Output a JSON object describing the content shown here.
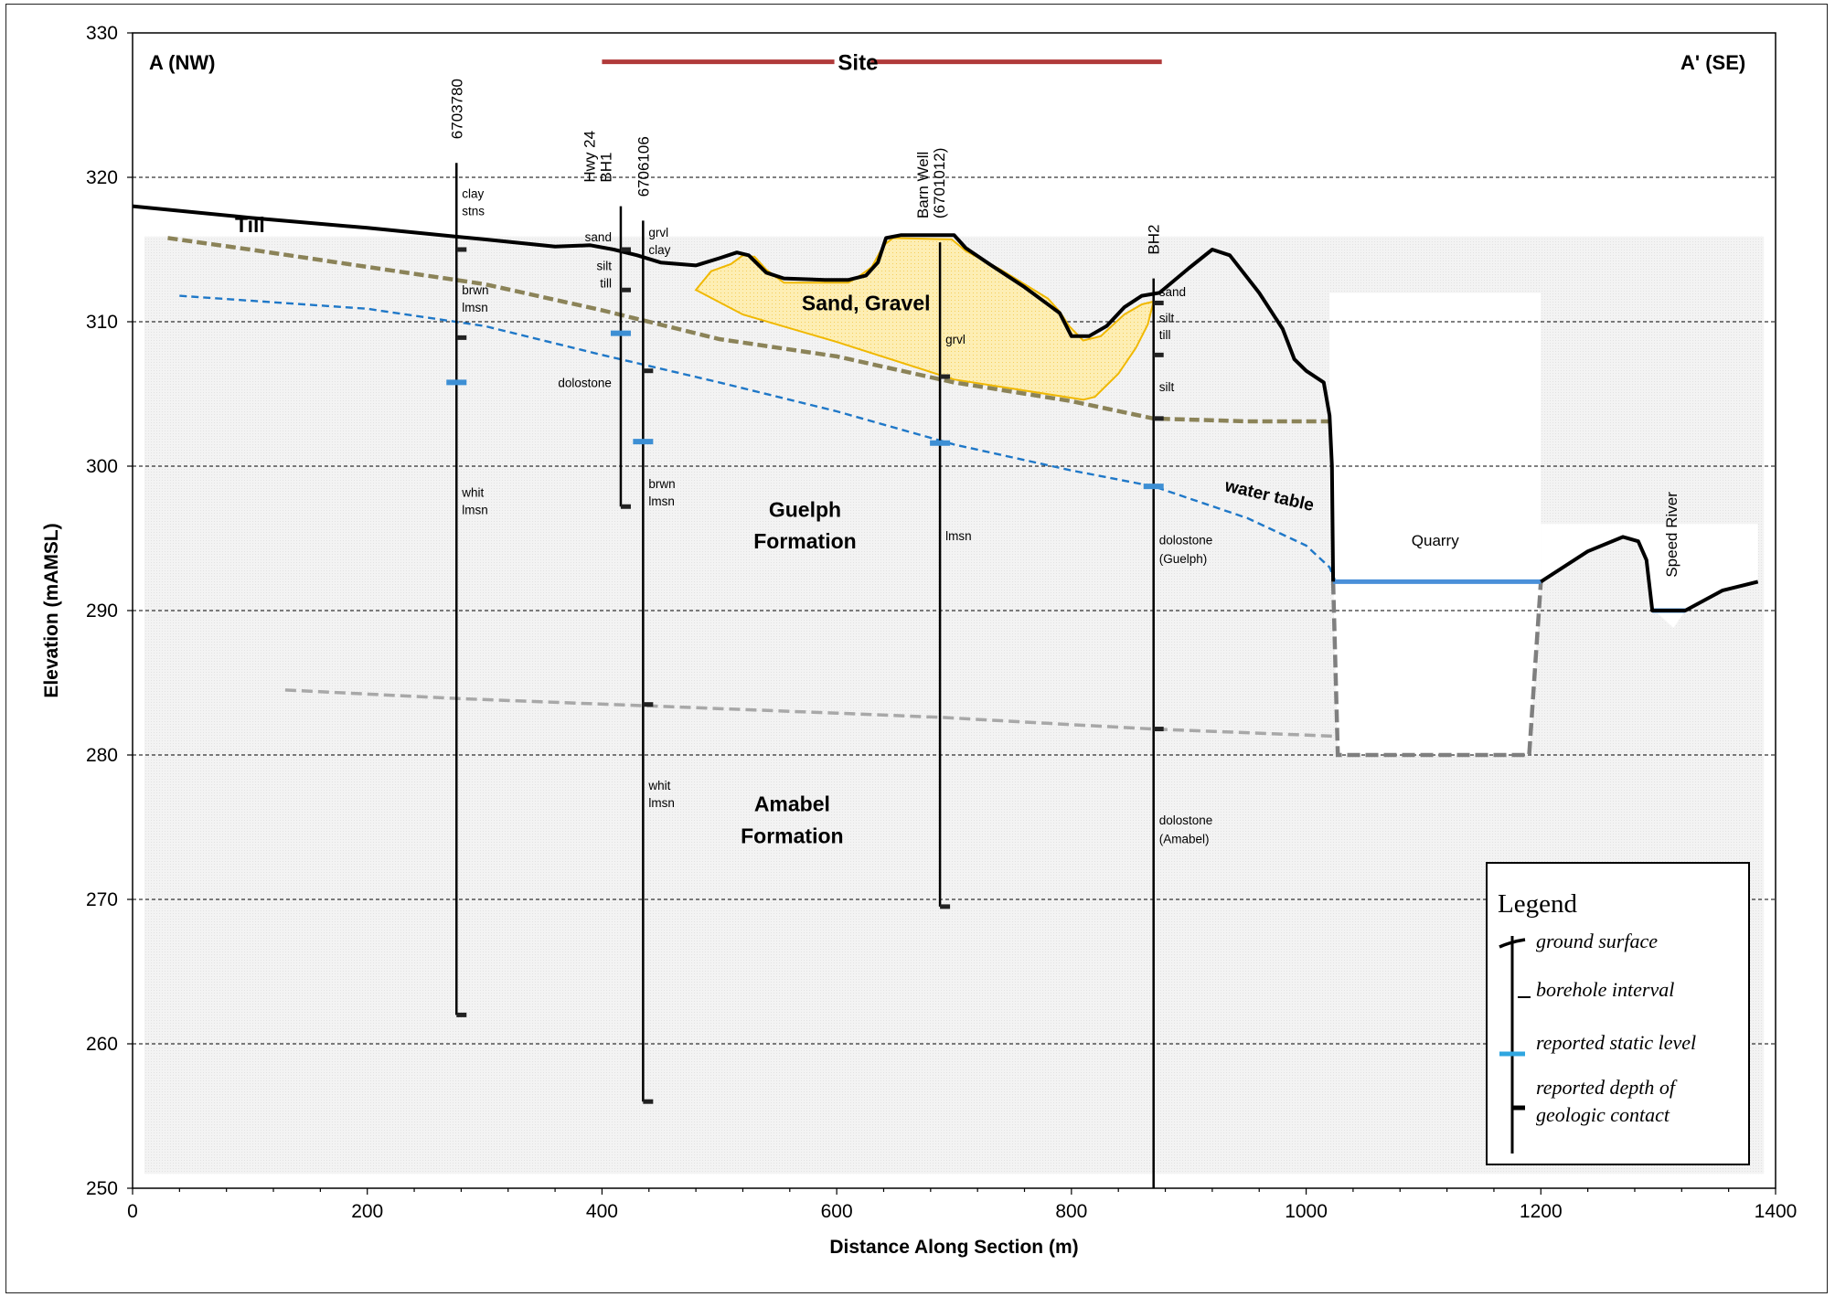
{
  "chart_data": {
    "type": "cross-section",
    "xlabel": "Distance Along Section (m)",
    "ylabel": "Elevation (mAMSL)",
    "xlim": [
      0,
      1400
    ],
    "ylim": [
      250,
      330
    ],
    "x_ticks": [
      0,
      200,
      400,
      600,
      800,
      1000,
      1200,
      1400
    ],
    "y_ticks": [
      250,
      260,
      270,
      280,
      290,
      300,
      310,
      320,
      330
    ],
    "grid": "horizontal dashed",
    "section_start": "A (NW)",
    "section_end": "A' (SE)",
    "site": {
      "label": "Site",
      "x": [
        400,
        877
      ],
      "y": 328
    },
    "ground_surface": [
      [
        0,
        318
      ],
      [
        100,
        317.2
      ],
      [
        200,
        316.5
      ],
      [
        300,
        315.7
      ],
      [
        360,
        315.2
      ],
      [
        390,
        315.3
      ],
      [
        410,
        315
      ],
      [
        430,
        314.6
      ],
      [
        450,
        314.1
      ],
      [
        480,
        313.9
      ],
      [
        500,
        314.4
      ],
      [
        515,
        314.8
      ],
      [
        525,
        314.6
      ],
      [
        540,
        313.4
      ],
      [
        555,
        313
      ],
      [
        590,
        312.9
      ],
      [
        610,
        312.9
      ],
      [
        625,
        313.2
      ],
      [
        635,
        314.1
      ],
      [
        642,
        315.8
      ],
      [
        655,
        316
      ],
      [
        700,
        316
      ],
      [
        710,
        315.1
      ],
      [
        730,
        314
      ],
      [
        760,
        312.4
      ],
      [
        790,
        310.6
      ],
      [
        800,
        309
      ],
      [
        815,
        309
      ],
      [
        830,
        309.7
      ],
      [
        845,
        311
      ],
      [
        860,
        311.8
      ],
      [
        875,
        312
      ],
      [
        900,
        313.7
      ],
      [
        920,
        315
      ],
      [
        935,
        314.6
      ],
      [
        960,
        312
      ],
      [
        980,
        309.5
      ],
      [
        990,
        307.4
      ],
      [
        1000,
        306.6
      ],
      [
        1015,
        305.8
      ],
      [
        1020,
        303.5
      ],
      [
        1022,
        300
      ],
      [
        1023,
        292
      ]
    ],
    "ground_surface_se": [
      [
        1200,
        292
      ],
      [
        1240,
        294.1
      ],
      [
        1270,
        295.1
      ],
      [
        1283,
        294.8
      ],
      [
        1290,
        293.5
      ],
      [
        1295,
        290
      ],
      [
        1323,
        290
      ],
      [
        1355,
        291.4
      ],
      [
        1385,
        292
      ]
    ],
    "till_bottom": [
      [
        30,
        315.8
      ],
      [
        100,
        315
      ],
      [
        200,
        313.8
      ],
      [
        300,
        312.6
      ],
      [
        400,
        310.8
      ],
      [
        500,
        308.8
      ],
      [
        600,
        307.6
      ],
      [
        700,
        305.8
      ],
      [
        800,
        304.5
      ],
      [
        870,
        303.3
      ],
      [
        950,
        303.1
      ],
      [
        1020,
        303.1
      ]
    ],
    "water_table": [
      [
        40,
        311.8
      ],
      [
        200,
        310.9
      ],
      [
        300,
        309.7
      ],
      [
        400,
        307.7
      ],
      [
        500,
        305.8
      ],
      [
        600,
        303.8
      ],
      [
        700,
        301.5
      ],
      [
        800,
        299.7
      ],
      [
        870,
        298.6
      ],
      [
        950,
        296.4
      ],
      [
        1000,
        294.5
      ],
      [
        1020,
        293
      ],
      [
        1025,
        292
      ]
    ],
    "guelph_amabel_contact": [
      [
        130,
        284.5
      ],
      [
        280,
        283.9
      ],
      [
        440,
        283.4
      ],
      [
        600,
        282.9
      ],
      [
        690,
        282.6
      ],
      [
        800,
        282.1
      ],
      [
        870,
        281.8
      ],
      [
        1025,
        281.3
      ]
    ],
    "sand_gravel": [
      [
        480,
        312.2
      ],
      [
        493,
        313.5
      ],
      [
        510,
        314
      ],
      [
        520,
        314.6
      ],
      [
        530,
        314.5
      ],
      [
        540,
        313.6
      ],
      [
        555,
        312.7
      ],
      [
        610,
        312.7
      ],
      [
        620,
        313.2
      ],
      [
        630,
        313.8
      ],
      [
        640,
        315.3
      ],
      [
        648,
        315.8
      ],
      [
        698,
        315.7
      ],
      [
        710,
        314.9
      ],
      [
        740,
        313.6
      ],
      [
        780,
        311.6
      ],
      [
        790,
        310.7
      ],
      [
        798,
        309.7
      ],
      [
        810,
        308.7
      ],
      [
        825,
        309
      ],
      [
        845,
        310.5
      ],
      [
        860,
        311.2
      ],
      [
        870,
        311.4
      ],
      [
        865,
        309.8
      ],
      [
        855,
        308.2
      ],
      [
        840,
        306.4
      ],
      [
        820,
        304.8
      ],
      [
        810,
        304.6
      ],
      [
        700,
        306
      ],
      [
        600,
        308.6
      ],
      [
        520,
        310.5
      ],
      [
        480,
        312.2
      ]
    ],
    "quarry": {
      "label": "Quarry",
      "water_level": 292,
      "x": [
        1023,
        1200
      ],
      "floor": 280,
      "walls": [
        [
          1023,
          292
        ],
        [
          1027,
          280
        ],
        [
          1190,
          280
        ],
        [
          1200,
          292
        ]
      ]
    },
    "speed_river": {
      "label": "Speed River",
      "x": [
        1295,
        1323
      ],
      "water_level": 290
    },
    "unit_labels": [
      {
        "text": "Till",
        "x": 100,
        "y": 316.2
      },
      {
        "text": "Sand, Gravel",
        "x": 625,
        "y": 310.8
      },
      {
        "lines": [
          "Guelph",
          "Formation"
        ],
        "x": 573,
        "y": [
          296.5,
          294.3
        ]
      },
      {
        "lines": [
          "Amabel",
          "Formation"
        ],
        "x": 562,
        "y": [
          276.1,
          273.9
        ]
      },
      {
        "text": "water table",
        "x": 930,
        "y": 298.3,
        "rotate": 13
      }
    ],
    "boreholes": [
      {
        "name": "6703780",
        "x": 276,
        "top": 321,
        "bottom": 262,
        "name_lines": [
          "6703780"
        ],
        "name_x": 276,
        "logs": [
          {
            "text": "clay",
            "y": 318.9
          },
          {
            "text": "stns",
            "y": 317.7
          },
          {
            "text": "brwn",
            "y": 312.2
          },
          {
            "text": "lmsn",
            "y": 311
          },
          {
            "text": "whit",
            "y": 298.2
          },
          {
            "text": "lmsn",
            "y": 297
          }
        ],
        "log_side": "right",
        "contacts": [
          315,
          308.9,
          262
        ],
        "static": [
          305.8
        ]
      },
      {
        "name": "Hwy 24 BH1",
        "x": 416,
        "top": 318,
        "bottom": 297.2,
        "name_lines": [
          "Hwy 24",
          "BH1"
        ],
        "name_x": 396,
        "logs": [
          {
            "text": "sand",
            "y": 315.9
          },
          {
            "text": "silt",
            "y": 313.9
          },
          {
            "text": "till",
            "y": 312.7
          },
          {
            "text": "dolostone",
            "y": 305.8
          }
        ],
        "log_side": "left",
        "contacts": [
          315,
          312.2,
          297.2
        ],
        "static": [
          309.2
        ]
      },
      {
        "name": "6706106",
        "x": 435,
        "top": 317,
        "bottom": 256,
        "name_lines": [
          "6706106"
        ],
        "name_x": 435,
        "logs": [
          {
            "text": "grvl",
            "y": 316.2
          },
          {
            "text": "clay",
            "y": 315
          },
          {
            "text": "brwn",
            "y": 298.8
          },
          {
            "text": "lmsn",
            "y": 297.6
          },
          {
            "text": "whit",
            "y": 277.9
          },
          {
            "text": "lmsn",
            "y": 276.7
          }
        ],
        "log_side": "right",
        "contacts": [
          306.6,
          283.5,
          256
        ],
        "static": [
          301.7
        ]
      },
      {
        "name": "Barn Well (6701012)",
        "x": 688,
        "top": 315.5,
        "bottom": 269.5,
        "name_lines": [
          "Barn Well",
          "(6701012)"
        ],
        "name_x": 680,
        "logs": [
          {
            "text": "grvl",
            "y": 308.8
          },
          {
            "text": "lmsn",
            "y": 295.2
          }
        ],
        "log_side": "right",
        "contacts": [
          306.2,
          269.5
        ],
        "static": [
          301.6
        ]
      },
      {
        "name": "BH2",
        "x": 870,
        "top": 313,
        "bottom": 250,
        "name_lines": [
          "BH2"
        ],
        "name_x": 870,
        "logs": [
          {
            "text": "sand",
            "y": 312.1
          },
          {
            "text": "silt",
            "y": 310.3
          },
          {
            "text": "till",
            "y": 309.1
          },
          {
            "text": "silt",
            "y": 305.5
          },
          {
            "text": "dolostone",
            "y": 294.9
          },
          {
            "text": "(Guelph)",
            "y": 293.6
          },
          {
            "text": "dolostone",
            "y": 275.5
          },
          {
            "text": "(Amabel)",
            "y": 274.2
          }
        ],
        "log_side": "right",
        "contacts": [
          311.3,
          307.7,
          303.3,
          281.8
        ],
        "static": [
          298.6
        ]
      }
    ],
    "legend": {
      "title": "Legend",
      "placement": "bottom-right",
      "items": [
        "ground surface",
        "borehole interval",
        "reported static level",
        "reported depth of",
        "geologic contact"
      ]
    },
    "colors": {
      "ground": "#000000",
      "till": "#8b8358",
      "water": "#1f78c8",
      "contact": "#a8a8a8",
      "sand_fill": "#fde9a6",
      "sand_edge": "#f0b800",
      "site": "#b03a3a",
      "static": "#3d8fd4",
      "quarry_wall": "#7f7f7f",
      "bedrock": "#f1f1f1"
    }
  }
}
